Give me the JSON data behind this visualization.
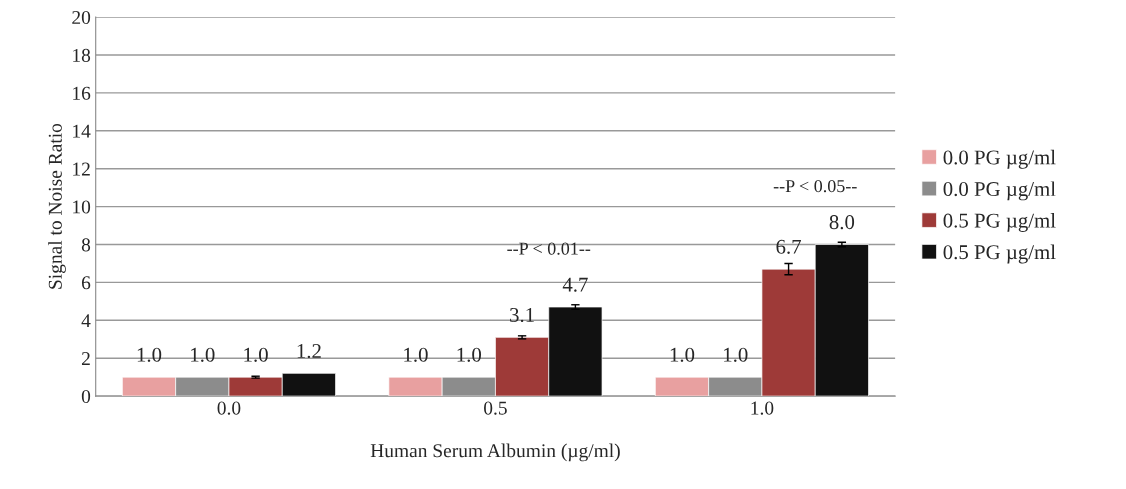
{
  "chart_data": {
    "type": "bar",
    "xlabel": "Human Serum Albumin (µg/ml)",
    "ylabel": "Signal to Noise Ratio",
    "categories": [
      "0.0",
      "0.5",
      "1.0"
    ],
    "series": [
      {
        "name": "0.0 PG µg/ml",
        "color": "#e8a0a0",
        "values": [
          1.0,
          1.0,
          1.0
        ],
        "value_labels": [
          "1.0",
          "1.0",
          "1.0"
        ]
      },
      {
        "name": "0.0 PG µg/ml",
        "color": "#8c8c8c",
        "values": [
          1.0,
          1.0,
          1.0
        ],
        "value_labels": [
          "1.0",
          "1.0",
          "1.0"
        ]
      },
      {
        "name": "0.5 PG µg/ml",
        "color": "#9e3a38",
        "values": [
          1.0,
          3.1,
          6.7
        ],
        "errors": [
          0.05,
          0.08,
          0.3
        ],
        "value_labels": [
          "1.0",
          "3.1",
          "6.7"
        ]
      },
      {
        "name": "0.5 PG µg/ml",
        "color": "#111111",
        "values": [
          1.2,
          4.7,
          8.0
        ],
        "errors": [
          null,
          0.12,
          0.12
        ],
        "value_labels": [
          "1.2",
          "4.7",
          "8.0"
        ]
      }
    ],
    "annotations": [
      "--P < 0.01--",
      "--P < 0.05--"
    ],
    "ylim": [
      0,
      20
    ],
    "yticks": [
      0,
      2,
      4,
      6,
      8,
      10,
      12,
      14,
      16,
      18,
      20
    ],
    "grid": "y",
    "legend": "right"
  }
}
